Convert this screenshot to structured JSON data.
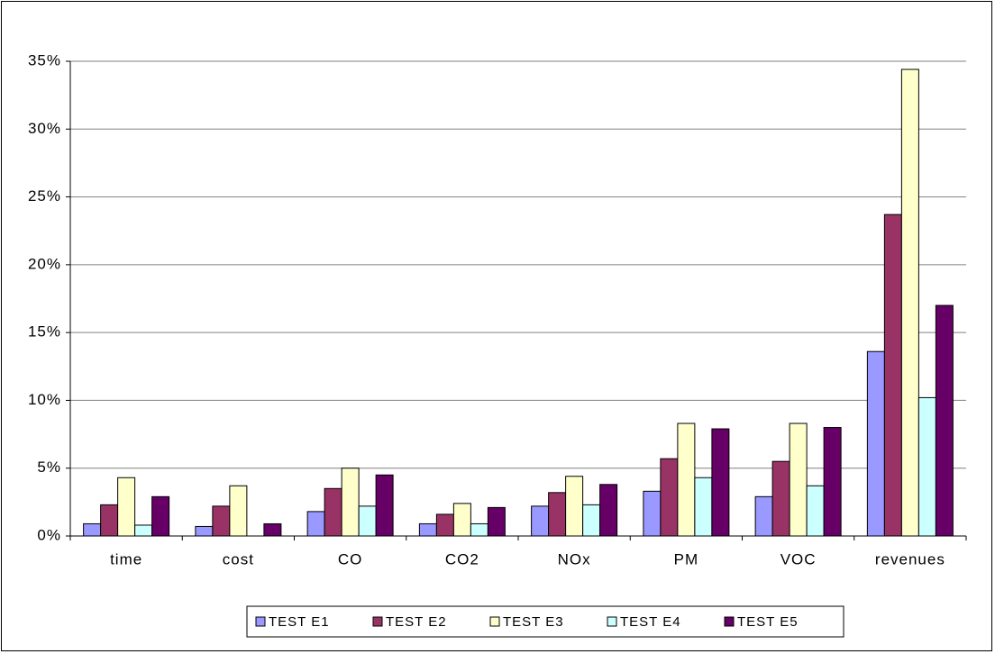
{
  "chart_data": {
    "type": "bar",
    "categories": [
      "time",
      "cost",
      "CO",
      "CO2",
      "NOx",
      "PM",
      "VOC",
      "revenues"
    ],
    "series": [
      {
        "name": "TEST E1",
        "color": "#9999ff",
        "values": [
          0.9,
          0.7,
          1.8,
          0.9,
          2.2,
          3.3,
          2.9,
          13.6
        ]
      },
      {
        "name": "TEST E2",
        "color": "#993366",
        "values": [
          2.3,
          2.2,
          3.5,
          1.6,
          3.2,
          5.7,
          5.5,
          23.7
        ]
      },
      {
        "name": "TEST E3",
        "color": "#ffffcc",
        "values": [
          4.3,
          3.7,
          5.0,
          2.4,
          4.4,
          8.3,
          8.3,
          34.4
        ]
      },
      {
        "name": "TEST E4",
        "color": "#ccffff",
        "values": [
          0.8,
          0,
          2.2,
          0.9,
          2.3,
          4.3,
          3.7,
          10.2
        ]
      },
      {
        "name": "TEST E5",
        "color": "#660066",
        "values": [
          2.9,
          0.9,
          4.5,
          2.1,
          3.8,
          7.9,
          8.0,
          17.0
        ]
      }
    ],
    "ylim": [
      0,
      35
    ],
    "yticks": [
      {
        "value": 0,
        "label": "0%"
      },
      {
        "value": 5,
        "label": "5%"
      },
      {
        "value": 10,
        "label": "10%"
      },
      {
        "value": 15,
        "label": "15%"
      },
      {
        "value": 20,
        "label": "20%"
      },
      {
        "value": 25,
        "label": "25%"
      },
      {
        "value": 30,
        "label": "30%"
      },
      {
        "value": 35,
        "label": "35%"
      }
    ],
    "grid": true,
    "legend": "bottom"
  }
}
